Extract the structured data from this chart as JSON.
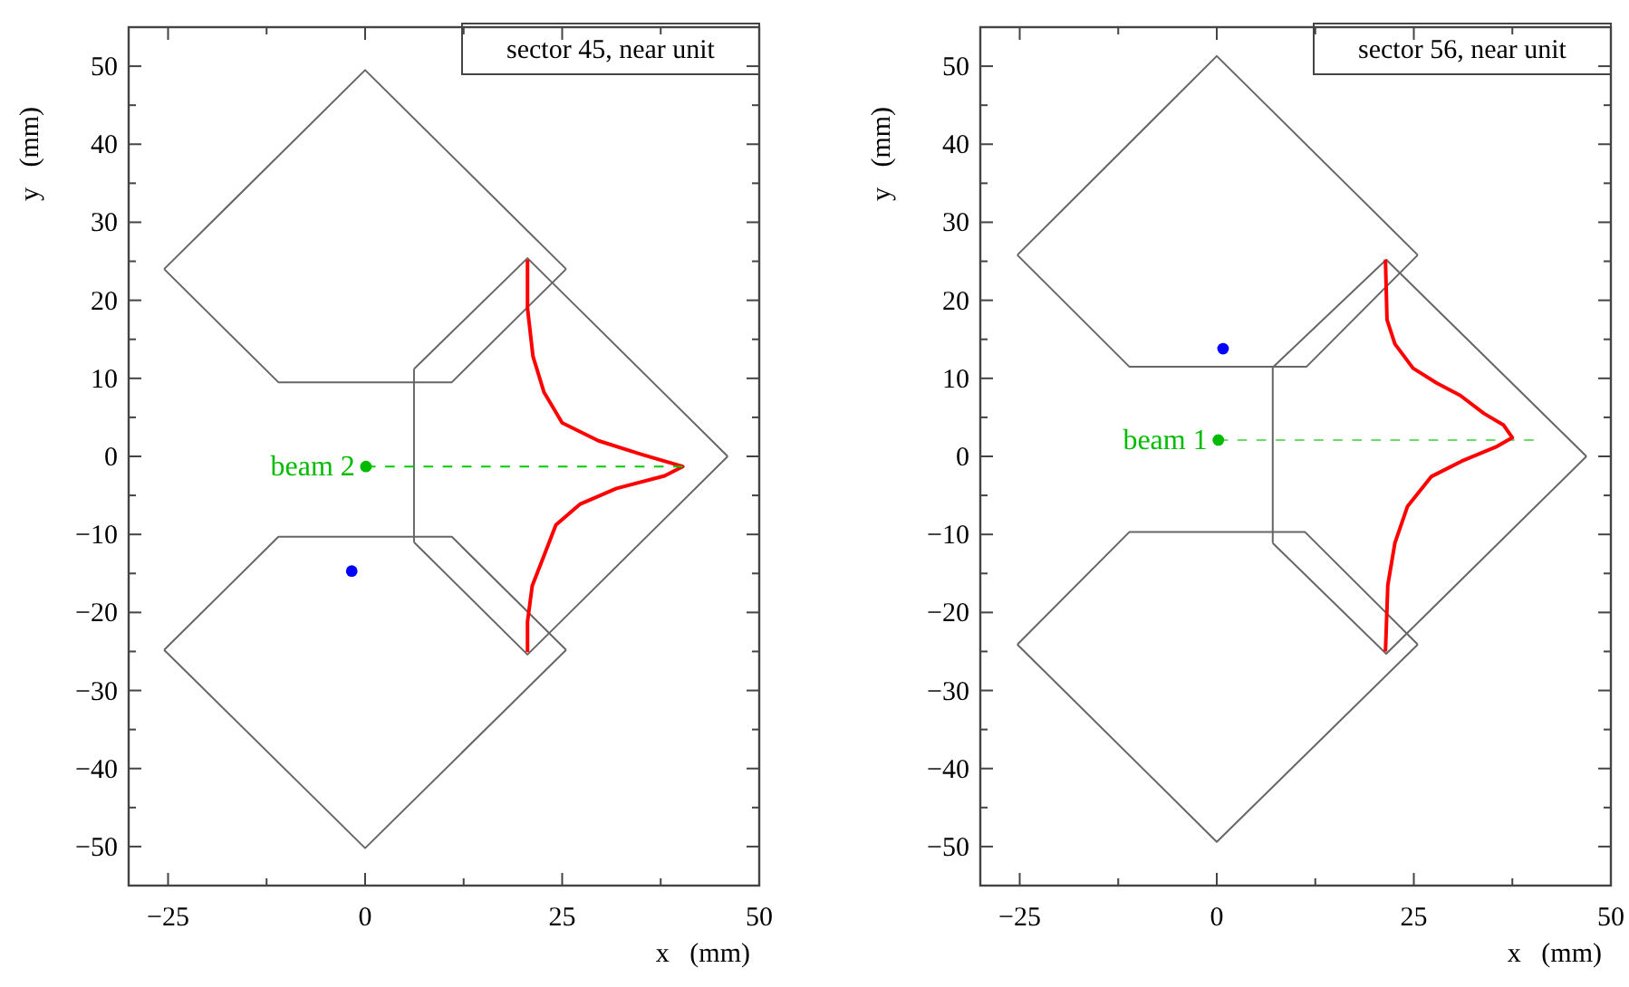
{
  "chart_data": [
    {
      "type": "line",
      "xlabel": "x   (mm)",
      "ylabel": "y   (mm)",
      "xlim": [
        -30,
        50
      ],
      "ylim": [
        -55,
        55
      ],
      "xticks": [
        {
          "value": -25,
          "label": "−25"
        },
        {
          "value": -12.5,
          "label": null
        },
        0,
        {
          "value": 12.5,
          "label": null
        },
        25,
        {
          "value": 37.5,
          "label": null
        },
        50
      ],
      "yticks": [
        {
          "value": -50,
          "label": "−50"
        },
        {
          "value": -45,
          "label": null
        },
        {
          "value": -40,
          "label": "−40"
        },
        {
          "value": -35,
          "label": null
        },
        {
          "value": -30,
          "label": "−30"
        },
        {
          "value": -25,
          "label": null
        },
        {
          "value": -20,
          "label": "−20"
        },
        {
          "value": -15,
          "label": null
        },
        {
          "value": -10,
          "label": "−10"
        },
        {
          "value": -5,
          "label": null
        },
        0,
        {
          "value": 5,
          "label": null
        },
        10,
        {
          "value": 15,
          "label": null
        },
        20,
        {
          "value": 25,
          "label": null
        },
        30,
        {
          "value": 35,
          "label": null
        },
        40,
        {
          "value": 45,
          "label": null
        },
        50
      ],
      "annotations": [
        "sector 45, near unit",
        {
          "text": "beam 2",
          "x": 0.1,
          "y": -1.3
        }
      ],
      "series": [
        {
          "color": "#666666",
          "x": [
            -25.5,
            0,
            25.5
          ],
          "values": [
            24,
            49.5,
            24
          ]
        },
        {
          "color": "#666666",
          "x": [
            -25.5,
            -11,
            11,
            25.5
          ],
          "values": [
            24,
            9.5,
            9.5,
            24
          ]
        },
        {
          "color": "#666666",
          "x": [
            -25.5,
            -11,
            11,
            25.5
          ],
          "values": [
            -24.8,
            -10.3,
            -10.3,
            -24.8
          ]
        },
        {
          "color": "#666666",
          "x": [
            -25.5,
            0,
            25.5
          ],
          "values": [
            -24.8,
            -50.2,
            -24.8
          ]
        },
        {
          "color": "#666666",
          "x": [
            6.2,
            20.6,
            46
          ],
          "values": [
            11.2,
            25.4,
            0
          ]
        },
        {
          "color": "#666666",
          "x": [
            6.2,
            20.6,
            46
          ],
          "values": [
            -11,
            -25.4,
            0
          ]
        },
        {
          "color": "#666666",
          "x": [
            6.2,
            6.2
          ],
          "values": [
            -11,
            11.2
          ]
        },
        {
          "color": "#ff0000",
          "x": [
            20.6,
            20.6,
            21.3,
            22.7,
            25,
            29.6,
            34.9,
            40.3,
            38,
            31.9,
            27.3,
            24.2,
            22.7,
            21.2,
            20.6,
            20.6
          ],
          "values": [
            25.2,
            19,
            12.8,
            8.2,
            4.3,
            2,
            0.3,
            -1.3,
            -2.5,
            -4.1,
            -6.1,
            -8.8,
            -12.7,
            -16.6,
            -21.2,
            -25.1
          ]
        },
        {
          "color": "#00cc00",
          "line_style": "dashed",
          "x": [
            0.1,
            40.3
          ],
          "values": [
            -1.3,
            -1.3
          ]
        },
        {
          "type": "scatter",
          "marker": "circle",
          "color": "#00bb00",
          "x": [
            0.1
          ],
          "values": [
            -1.3
          ]
        },
        {
          "type": "scatter",
          "marker": "circle",
          "color": "#0000ff",
          "x": [
            -1.7
          ],
          "values": [
            -14.7
          ]
        }
      ]
    },
    {
      "type": "line",
      "xlabel": "x   (mm)",
      "ylabel": "y   (mm)",
      "xlim": [
        -30,
        50
      ],
      "ylim": [
        -55,
        55
      ],
      "xticks": [
        {
          "value": -25,
          "label": "−25"
        },
        {
          "value": -12.5,
          "label": null
        },
        0,
        {
          "value": 12.5,
          "label": null
        },
        25,
        {
          "value": 37.5,
          "label": null
        },
        50
      ],
      "yticks": [
        {
          "value": -50,
          "label": "−50"
        },
        {
          "value": -45,
          "label": null
        },
        {
          "value": -40,
          "label": "−40"
        },
        {
          "value": -35,
          "label": null
        },
        {
          "value": -30,
          "label": "−30"
        },
        {
          "value": -25,
          "label": null
        },
        {
          "value": -20,
          "label": "−20"
        },
        {
          "value": -15,
          "label": null
        },
        {
          "value": -10,
          "label": "−10"
        },
        {
          "value": -5,
          "label": null
        },
        0,
        {
          "value": 5,
          "label": null
        },
        10,
        {
          "value": 15,
          "label": null
        },
        20,
        {
          "value": 25,
          "label": null
        },
        30,
        {
          "value": 35,
          "label": null
        },
        40,
        {
          "value": 45,
          "label": null
        },
        50
      ],
      "annotations": [
        "sector 56, near unit",
        {
          "text": "beam 1",
          "x": 0.2,
          "y": 2.1
        }
      ],
      "series": [
        {
          "color": "#666666",
          "x": [
            -25.3,
            0,
            25.5
          ],
          "values": [
            25.8,
            51.3,
            25.8
          ]
        },
        {
          "color": "#666666",
          "x": [
            -25.3,
            -11.1,
            11.4,
            25.5
          ],
          "values": [
            25.8,
            11.5,
            11.5,
            25.8
          ]
        },
        {
          "color": "#666666",
          "x": [
            -25.3,
            -11.1,
            11.2,
            25.5
          ],
          "values": [
            -24.1,
            -9.7,
            -9.7,
            -24.1
          ]
        },
        {
          "color": "#666666",
          "x": [
            -25.3,
            0,
            25.5
          ],
          "values": [
            -24.1,
            -49.4,
            -24.1
          ]
        },
        {
          "color": "#666666",
          "x": [
            7.1,
            21.5,
            46.9
          ],
          "values": [
            11.4,
            25.2,
            0
          ]
        },
        {
          "color": "#666666",
          "x": [
            7.1,
            21.5,
            46.9
          ],
          "values": [
            -11.1,
            -25.3,
            0
          ]
        },
        {
          "color": "#666666",
          "x": [
            7.1,
            7.1
          ],
          "values": [
            -11.1,
            11.4
          ]
        },
        {
          "color": "#66dd66",
          "line_style": "dashed",
          "x": [
            0.2,
            40.2
          ],
          "values": [
            2.1,
            2.1
          ]
        },
        {
          "color": "#ff0000",
          "x": [
            21.4,
            21.6,
            22.6,
            24.9,
            27.9,
            30.9,
            33.9,
            36.4,
            37.5,
            35.6,
            31.1,
            27.2,
            24.2,
            22.6,
            21.7,
            21.4
          ],
          "values": [
            25.2,
            17.5,
            14.4,
            11.3,
            9.4,
            7.8,
            5.5,
            4,
            2.4,
            1.3,
            -0.6,
            -2.6,
            -6.4,
            -11.1,
            -16.5,
            -25
          ]
        },
        {
          "type": "scatter",
          "marker": "circle",
          "color": "#00bb00",
          "x": [
            0.2
          ],
          "values": [
            2.1
          ]
        },
        {
          "type": "scatter",
          "marker": "circle",
          "color": "#0000ff",
          "x": [
            0.8
          ],
          "values": [
            13.8
          ]
        }
      ]
    }
  ]
}
